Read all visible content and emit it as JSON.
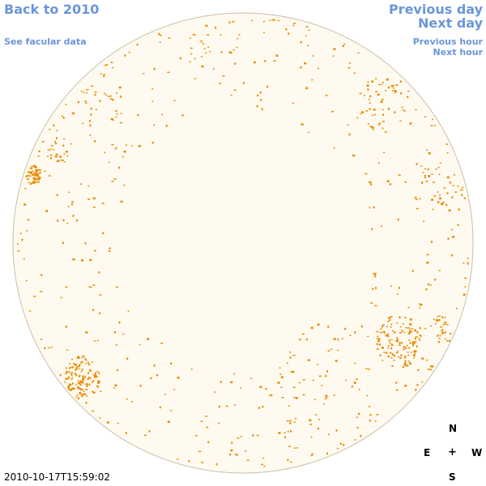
{
  "navigation": {
    "back_label": "Back to 2010",
    "facular_label": "See facular data",
    "prev_day_label": "Previous day",
    "next_day_label": "Next day",
    "prev_hour_label": "Previous hour",
    "next_hour_label": "Next hour"
  },
  "compass": {
    "north": "N",
    "south": "S",
    "east": "E",
    "west": "W",
    "center": "+"
  },
  "timestamp": "2010-10-17T15:59:02",
  "colors": {
    "link": "#6b96d9",
    "disk_fill": "#fffaf0",
    "disk_outline": "#c8bfa8",
    "facula": "#e88a00"
  }
}
